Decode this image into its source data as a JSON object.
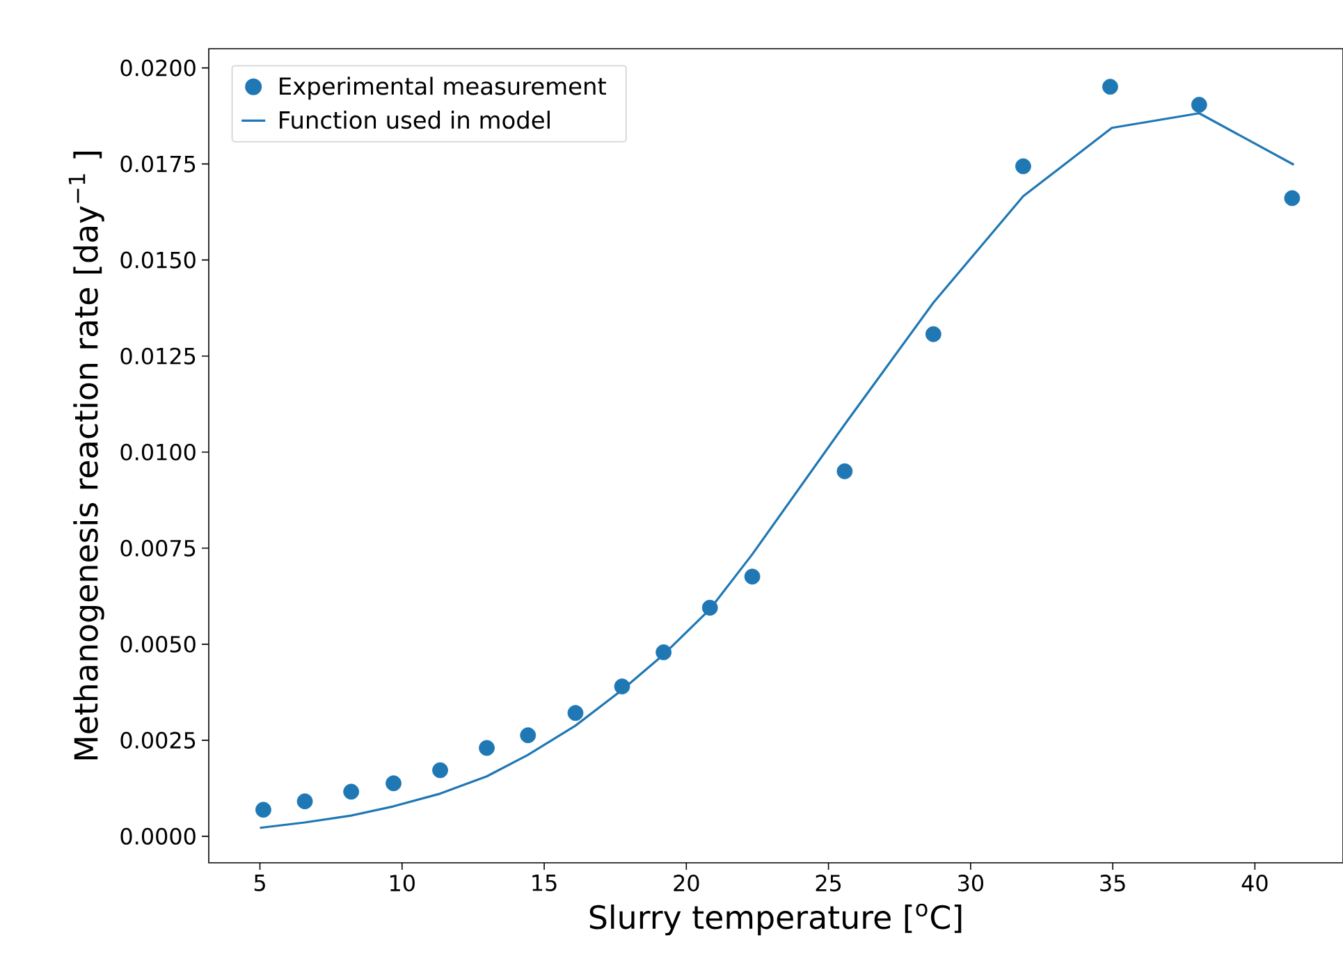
{
  "chart_data": {
    "type": "scatter",
    "xlabel": "Slurry temperature [$^{o}$C]",
    "ylabel": "Methanogenesis reaction rate [day$^{−1}$ ]",
    "xlim": [
      3.2,
      43.1
    ],
    "ylim": [
      -0.00069,
      0.0205
    ],
    "xticks": [
      5,
      10,
      15,
      20,
      25,
      30,
      35,
      40
    ],
    "yticks": [
      {
        "value": 0,
        "label": "0.0000"
      },
      {
        "value": 0.0025,
        "label": "0.0025"
      },
      {
        "value": 0.005,
        "label": "0.0050"
      },
      {
        "value": 0.0075,
        "label": "0.0075"
      },
      {
        "value": 0.01,
        "label": "0.0100"
      },
      {
        "value": 0.0125,
        "label": "0.0125"
      },
      {
        "value": 0.015,
        "label": "0.0150"
      },
      {
        "value": 0.0175,
        "label": "0.0175"
      },
      {
        "value": 0.02,
        "label": "0.0200"
      }
    ],
    "legend": "top left",
    "grid": false,
    "marker": "circle",
    "series": [
      {
        "name": "Experimental  measurement",
        "type": "scatter",
        "color": "#1f77b4",
        "x": [
          5.12,
          6.58,
          8.21,
          9.7,
          11.34,
          12.98,
          14.43,
          16.1,
          17.74,
          19.2,
          20.83,
          22.32,
          25.57,
          28.69,
          31.85,
          34.91,
          38.04,
          41.31
        ],
        "values": [
          0.00069,
          0.00091,
          0.00116,
          0.00138,
          0.00172,
          0.0023,
          0.00263,
          0.00321,
          0.0039,
          0.00479,
          0.00595,
          0.00676,
          0.0095,
          0.01307,
          0.01744,
          0.01951,
          0.01904,
          0.01661
        ]
      },
      {
        "name": "Function used in model",
        "type": "line",
        "marker": "none",
        "line_style": "solid",
        "color": "#1f77b4",
        "x": [
          5.0,
          6.58,
          8.21,
          9.7,
          11.34,
          12.98,
          14.43,
          16.1,
          17.74,
          19.2,
          20.83,
          22.32,
          25.57,
          28.69,
          31.85,
          34.97,
          38.04,
          41.37
        ],
        "values": [
          0.00022,
          0.00036,
          0.00054,
          0.00078,
          0.00111,
          0.00156,
          0.00212,
          0.00288,
          0.00381,
          0.00473,
          0.00591,
          0.00734,
          0.01072,
          0.01389,
          0.01666,
          0.01844,
          0.01882,
          0.01748
        ]
      }
    ]
  }
}
